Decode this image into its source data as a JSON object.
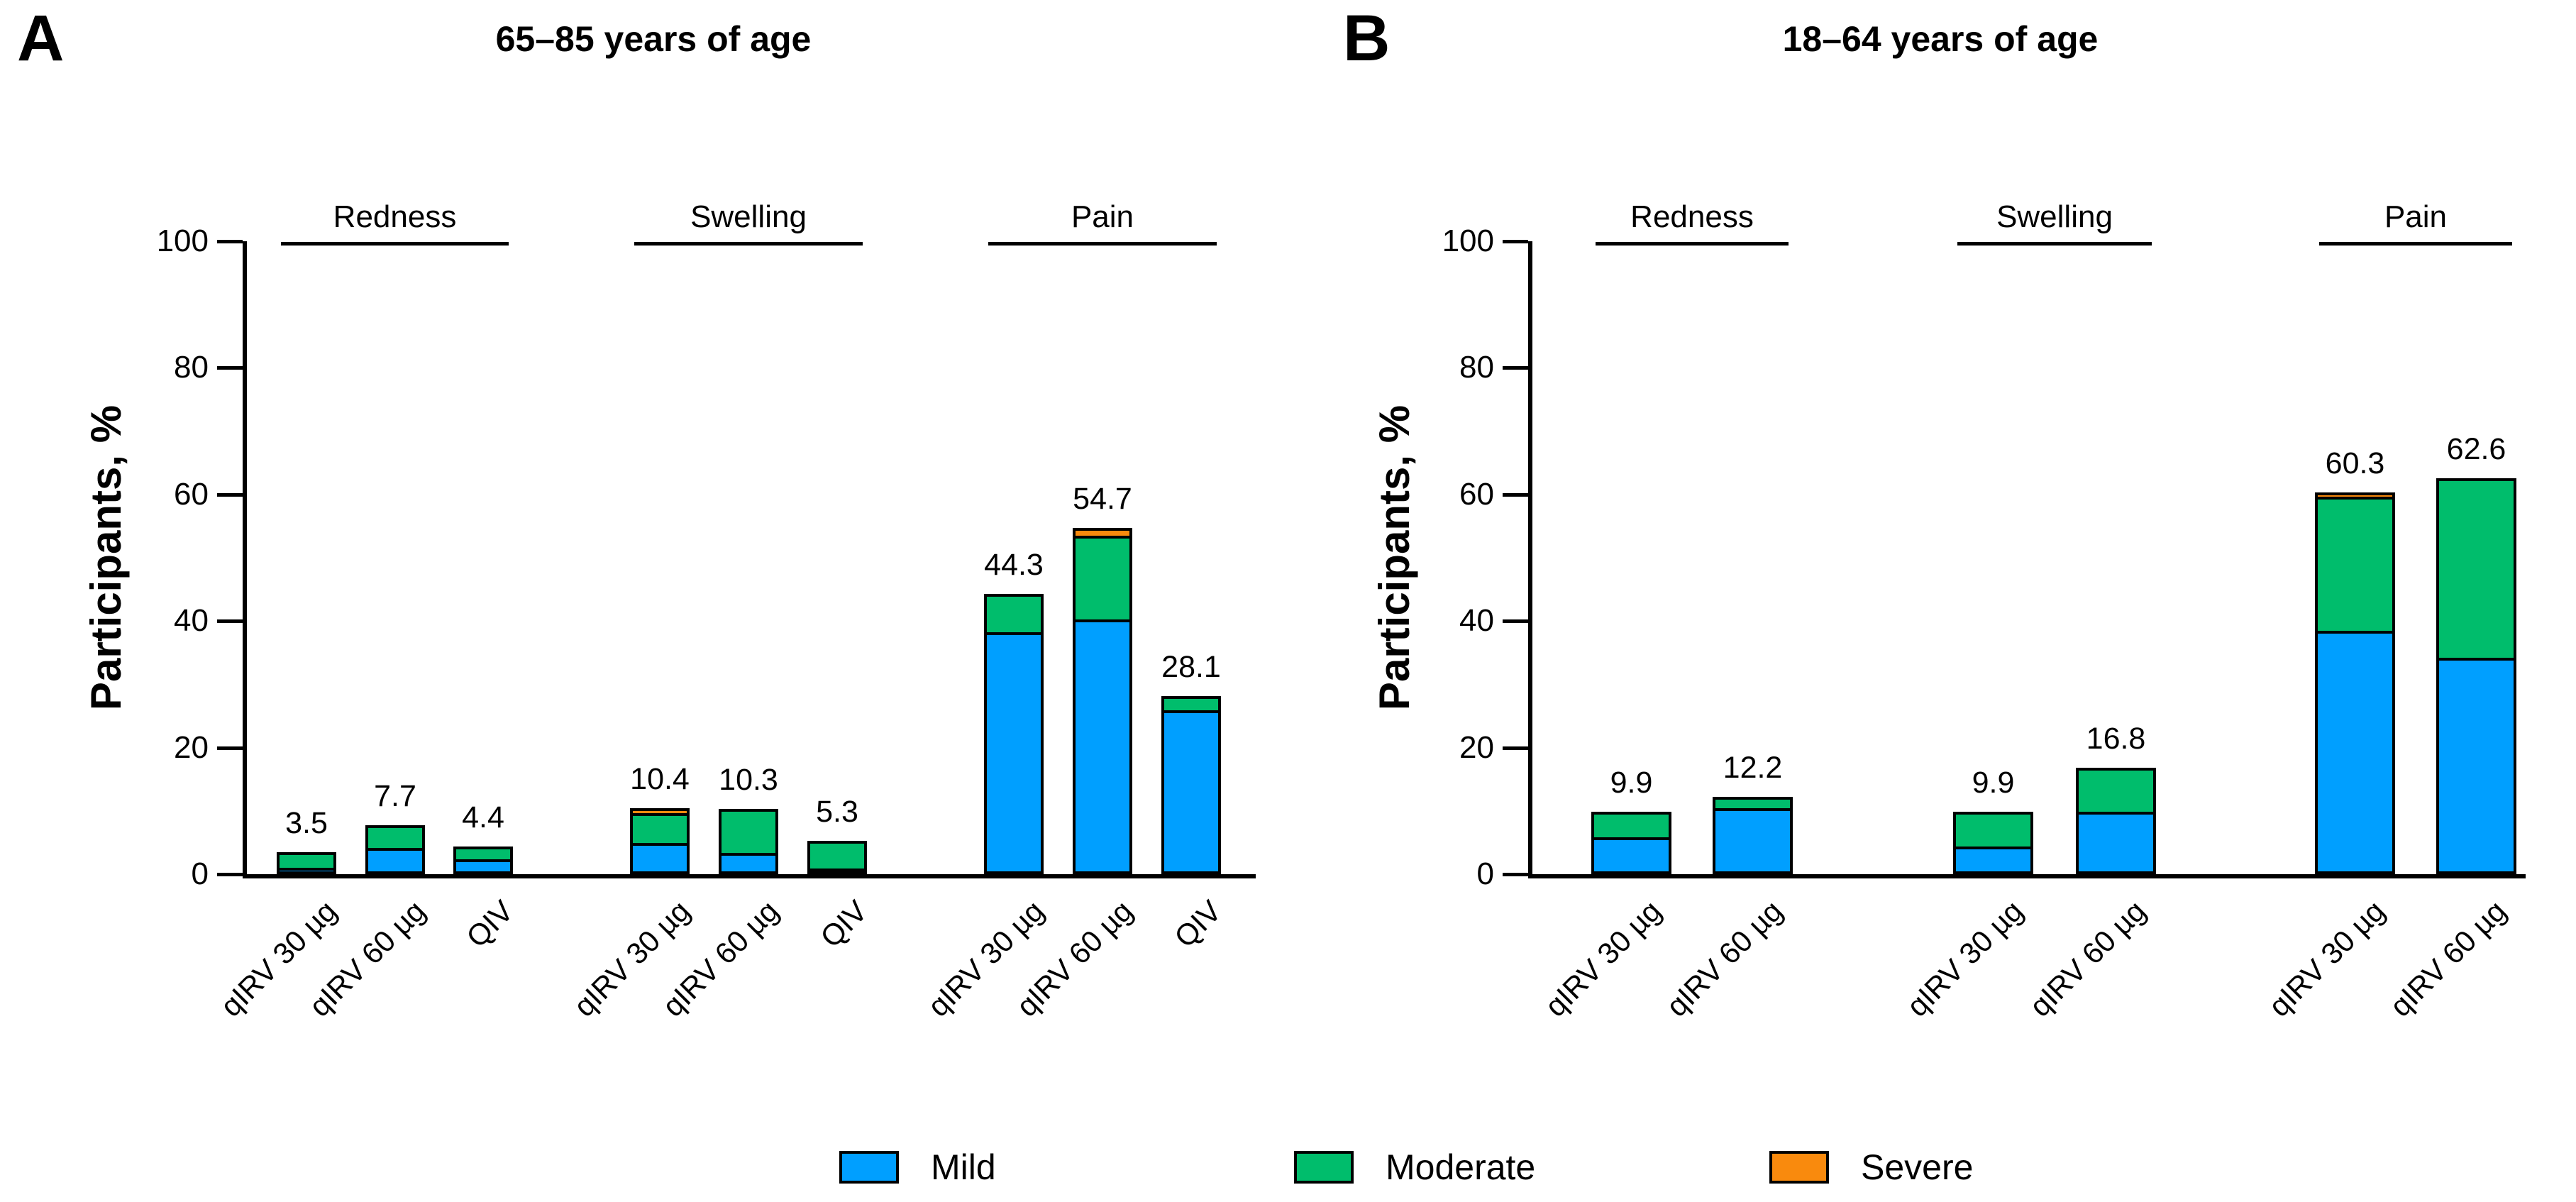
{
  "figure": {
    "background": "#FFFFFF",
    "text_color": "#000000"
  },
  "chart_data": {
    "type": "bar",
    "stacked": true,
    "orientation": "vertical",
    "ylabel": "Participants, %",
    "ylim": [
      0,
      100
    ],
    "yticks": [
      0,
      20,
      40,
      60,
      80,
      100
    ],
    "grid": false,
    "legend_position": "bottom",
    "series_colors": {
      "mild": "#009FFF",
      "moderate": "#00BD6C",
      "severe": "#F98A0D"
    },
    "legend": [
      {
        "key": "mild",
        "label": "Mild",
        "color": "#009FFF"
      },
      {
        "key": "moderate",
        "label": "Moderate",
        "color": "#00BD6C"
      },
      {
        "key": "severe",
        "label": "Severe",
        "color": "#F98A0D"
      }
    ],
    "panels": [
      {
        "panel_label": "A",
        "title": "65–85 years of age",
        "groups": [
          {
            "label": "Redness",
            "bars": [
              {
                "label": "qIRV 30 µg",
                "total": 3.5,
                "mild": 0.4,
                "moderate": 3.1,
                "severe": 0
              },
              {
                "label": "qIRV 60 µg",
                "total": 7.7,
                "mild": 3.9,
                "moderate": 3.8,
                "severe": 0
              },
              {
                "label": "QIV",
                "total": 4.4,
                "mild": 2.2,
                "moderate": 2.2,
                "severe": 0
              }
            ]
          },
          {
            "label": "Swelling",
            "bars": [
              {
                "label": "qIRV 30 µg",
                "total": 10.4,
                "mild": 4.7,
                "moderate": 5.1,
                "severe": 0.6
              },
              {
                "label": "qIRV 60 µg",
                "total": 10.3,
                "mild": 2.9,
                "moderate": 7.4,
                "severe": 0
              },
              {
                "label": "QIV",
                "total": 5.3,
                "mild": 0.3,
                "moderate": 5.0,
                "severe": 0
              }
            ]
          },
          {
            "label": "Pain",
            "bars": [
              {
                "label": "qIRV 30 µg",
                "total": 44.3,
                "mild": 38.3,
                "moderate": 6.0,
                "severe": 0
              },
              {
                "label": "qIRV 60 µg",
                "total": 54.7,
                "mild": 40.2,
                "moderate": 13.5,
                "severe": 1.0
              },
              {
                "label": "QIV",
                "total": 28.1,
                "mild": 26.0,
                "moderate": 2.1,
                "severe": 0
              }
            ]
          }
        ]
      },
      {
        "panel_label": "B",
        "title": "18–64 years of age",
        "groups": [
          {
            "label": "Redness",
            "bars": [
              {
                "label": "qIRV 30 µg",
                "total": 9.9,
                "mild": 5.7,
                "moderate": 4.2,
                "severe": 0
              },
              {
                "label": "qIRV 60 µg",
                "total": 12.2,
                "mild": 10.5,
                "moderate": 1.7,
                "severe": 0
              }
            ]
          },
          {
            "label": "Swelling",
            "bars": [
              {
                "label": "qIRV 30 µg",
                "total": 9.9,
                "mild": 4.1,
                "moderate": 5.8,
                "severe": 0
              },
              {
                "label": "qIRV 60 µg",
                "total": 16.8,
                "mild": 9.7,
                "moderate": 7.1,
                "severe": 0
              }
            ]
          },
          {
            "label": "Pain",
            "bars": [
              {
                "label": "qIRV 30 µg",
                "total": 60.3,
                "mild": 38.3,
                "moderate": 21.5,
                "severe": 0.5
              },
              {
                "label": "qIRV 60 µg",
                "total": 62.6,
                "mild": 34.0,
                "moderate": 28.6,
                "severe": 0
              }
            ]
          }
        ]
      }
    ]
  }
}
